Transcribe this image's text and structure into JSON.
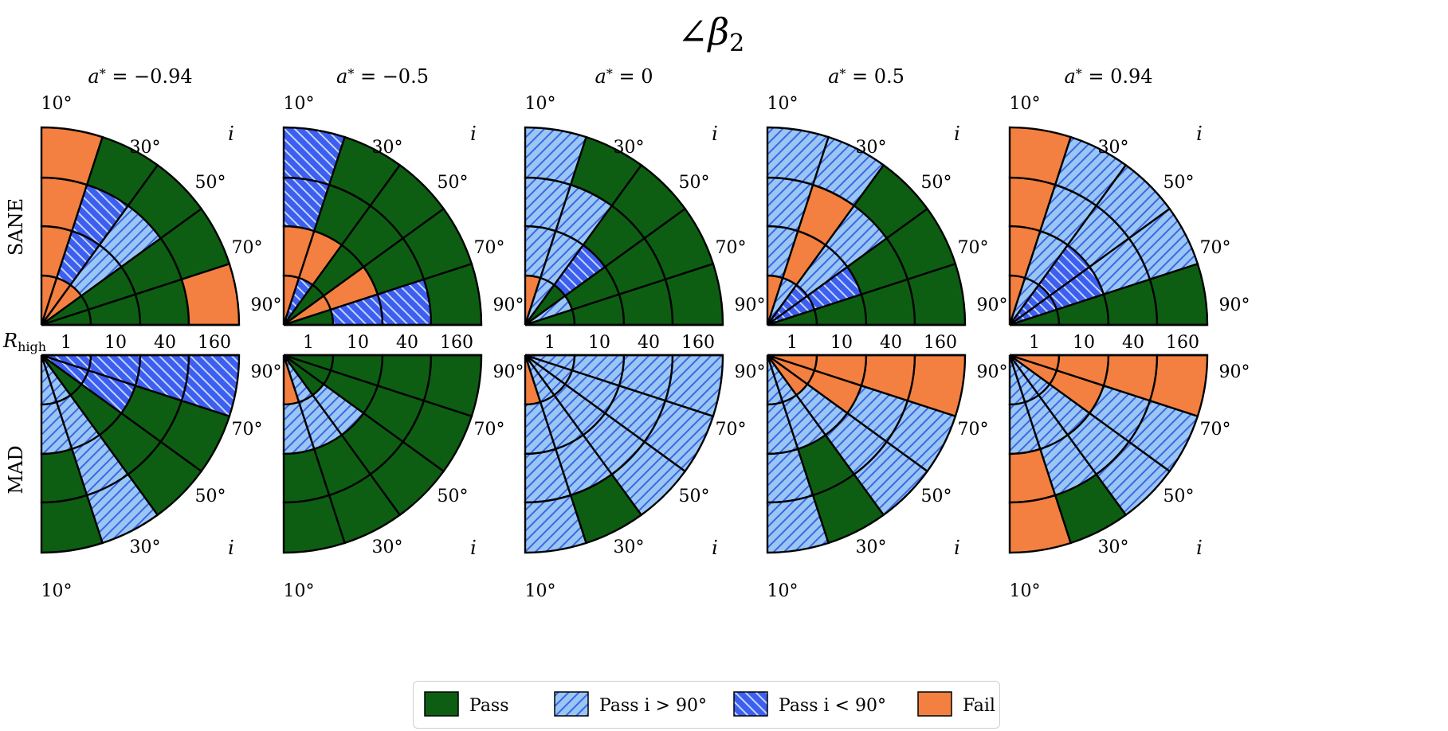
{
  "title": "∠β",
  "title_subscript": "2",
  "spin_symbol": "a",
  "spin_star": "*",
  "row_labels": [
    "SANE",
    "MAD"
  ],
  "axis_variable_rhigh": "R",
  "axis_variable_rhigh_sub": "high",
  "axis_variable_incl": "i",
  "rhigh_ticks": [
    "1",
    "10",
    "40",
    "160"
  ],
  "sane_angle_ticks": [
    "10°",
    "30°",
    "50°",
    "70°",
    "90°"
  ],
  "mad_angle_ticks": [
    "90°",
    "70°",
    "50°",
    "30°",
    "10°"
  ],
  "colors": {
    "pass": "#0d5e13",
    "pass_gt": "#99c6f3",
    "pass_lt": "#3d5ff0",
    "fail": "#f38040"
  },
  "legend": [
    {
      "key": "pass",
      "label": "Pass"
    },
    {
      "key": "pass_gt",
      "label": "Pass i > 90°"
    },
    {
      "key": "pass_lt",
      "label": "Pass i < 90°"
    },
    {
      "key": "fail",
      "label": "Fail"
    }
  ],
  "chart_data": {
    "type": "polar-grid",
    "title": "∠β2",
    "rows": [
      "SANE",
      "MAD"
    ],
    "columns": [
      "a* = −0.94",
      "a* = −0.5",
      "a* = 0",
      "a* = 0.5",
      "a* = 0.94"
    ],
    "spins": [
      "−0.94",
      "−0.5",
      "0",
      "0.5",
      "0.94"
    ],
    "rhigh": [
      "1",
      "10",
      "40",
      "160"
    ],
    "inclinations": [
      "10°",
      "30°",
      "50°",
      "70°",
      "90°"
    ],
    "legend_keys": {
      "P": "Pass",
      "G": "Pass i > 90°",
      "L": "Pass i < 90°",
      "F": "Fail"
    },
    "cells": {
      "SANE": [
        [
          [
            "F",
            "F",
            "F",
            "P",
            "P"
          ],
          [
            "F",
            "L",
            "G",
            "P",
            "P"
          ],
          [
            "F",
            "L",
            "G",
            "P",
            "P"
          ],
          [
            "F",
            "P",
            "P",
            "P",
            "F"
          ]
        ],
        [
          [
            "F",
            "L",
            "P",
            "F",
            "P"
          ],
          [
            "F",
            "F",
            "P",
            "F",
            "L"
          ],
          [
            "L",
            "P",
            "P",
            "P",
            "L"
          ],
          [
            "L",
            "P",
            "P",
            "P",
            "P"
          ]
        ],
        [
          [
            "F",
            "G",
            "P",
            "G",
            "P"
          ],
          [
            "G",
            "G",
            "L",
            "P",
            "P"
          ],
          [
            "G",
            "G",
            "P",
            "P",
            "P"
          ],
          [
            "G",
            "P",
            "P",
            "P",
            "P"
          ]
        ],
        [
          [
            "F",
            "G",
            "L",
            "L",
            "P"
          ],
          [
            "G",
            "F",
            "G",
            "L",
            "P"
          ],
          [
            "G",
            "F",
            "G",
            "P",
            "P"
          ],
          [
            "G",
            "G",
            "P",
            "P",
            "P"
          ]
        ],
        [
          [
            "F",
            "G",
            "L",
            "L",
            "P"
          ],
          [
            "F",
            "G",
            "L",
            "L",
            "P"
          ],
          [
            "F",
            "G",
            "G",
            "G",
            "P"
          ],
          [
            "F",
            "G",
            "G",
            "G",
            "P"
          ]
        ]
      ],
      "MAD": [
        [
          [
            "G",
            "G",
            "P",
            "L",
            "L"
          ],
          [
            "G",
            "G",
            "P",
            "L",
            "L"
          ],
          [
            "P",
            "G",
            "P",
            "P",
            "L"
          ],
          [
            "P",
            "G",
            "P",
            "P",
            "L"
          ]
        ],
        [
          [
            "F",
            "G",
            "P",
            "P",
            "P"
          ],
          [
            "G",
            "G",
            "G",
            "P",
            "P"
          ],
          [
            "P",
            "P",
            "P",
            "P",
            "P"
          ],
          [
            "P",
            "P",
            "P",
            "P",
            "P"
          ]
        ],
        [
          [
            "F",
            "G",
            "G",
            "G",
            "G"
          ],
          [
            "G",
            "G",
            "G",
            "G",
            "G"
          ],
          [
            "G",
            "G",
            "G",
            "G",
            "G"
          ],
          [
            "G",
            "P",
            "G",
            "G",
            "G"
          ]
        ],
        [
          [
            "G",
            "G",
            "F",
            "F",
            "F"
          ],
          [
            "G",
            "G",
            "G",
            "F",
            "F"
          ],
          [
            "G",
            "P",
            "G",
            "G",
            "F"
          ],
          [
            "G",
            "P",
            "G",
            "G",
            "F"
          ]
        ],
        [
          [
            "G",
            "G",
            "G",
            "F",
            "F"
          ],
          [
            "G",
            "G",
            "G",
            "F",
            "F"
          ],
          [
            "F",
            "G",
            "G",
            "G",
            "F"
          ],
          [
            "F",
            "P",
            "G",
            "G",
            "F"
          ]
        ]
      ]
    }
  }
}
